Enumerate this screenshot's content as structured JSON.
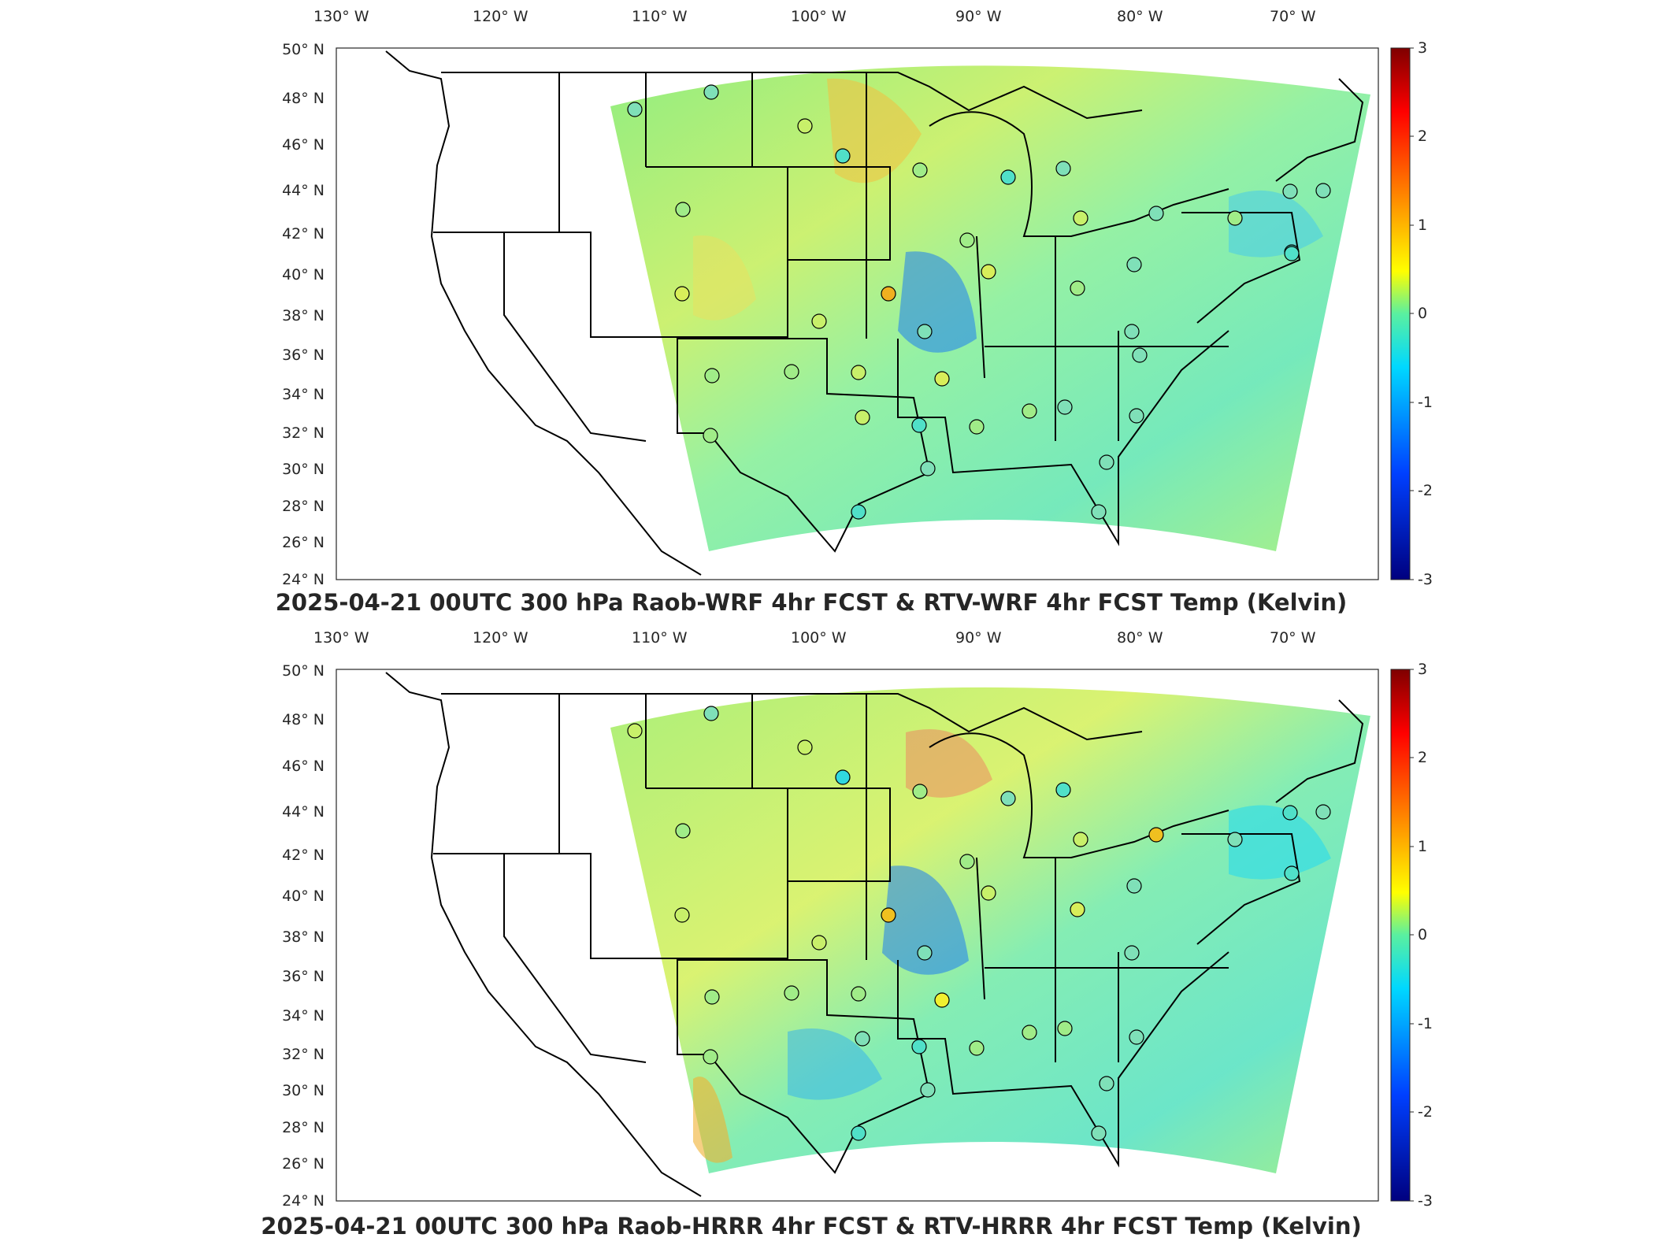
{
  "panels": [
    {
      "title": "2025-04-21 00UTC 300 hPa Raob-WRF 4hr FCST & RTV-WRF 4hr FCST Temp (Kelvin)",
      "lon_labels": [
        "130° W",
        "120° W",
        "110° W",
        "100° W",
        "90° W",
        "80° W",
        "70° W"
      ],
      "lat_labels": [
        "50° N",
        "48° N",
        "46° N",
        "44° N",
        "42° N",
        "40° N",
        "38° N",
        "36° N",
        "34° N",
        "32° N",
        "30° N",
        "28° N",
        "26° N",
        "24° N"
      ],
      "colorbar_ticks": [
        "3",
        "2",
        "1",
        "0",
        "-1",
        "-2",
        "-3"
      ]
    },
    {
      "title": "2025-04-21 00UTC 300 hPa Raob-HRRR 4hr FCST & RTV-HRRR 4hr FCST Temp (Kelvin)",
      "lon_labels": [
        "130° W",
        "120° W",
        "110° W",
        "100° W",
        "90° W",
        "80° W",
        "70° W"
      ],
      "lat_labels": [
        "50° N",
        "48° N",
        "46° N",
        "44° N",
        "42° N",
        "40° N",
        "38° N",
        "36° N",
        "34° N",
        "32° N",
        "30° N",
        "28° N",
        "26° N",
        "24° N"
      ],
      "colorbar_ticks": [
        "3",
        "2",
        "1",
        "0",
        "-1",
        "-2",
        "-3"
      ]
    }
  ],
  "colors": {
    "scale": [
      "#00007f",
      "#0000ff",
      "#00bfff",
      "#38e8c0",
      "#ffff00",
      "#ff8000",
      "#ff0000",
      "#7f0000"
    ]
  }
}
